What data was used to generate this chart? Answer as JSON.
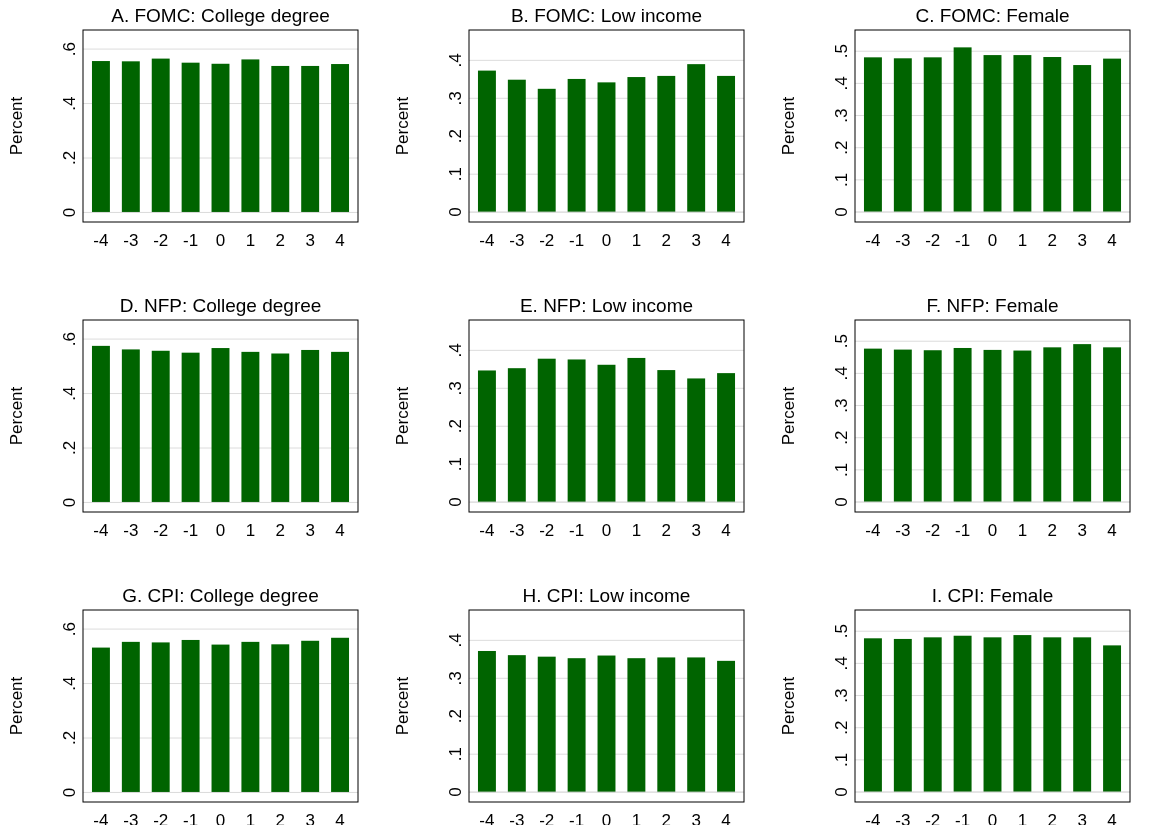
{
  "chart_data": [
    {
      "type": "bar",
      "title": "A. FOMC: College degree",
      "ylabel": "Percent",
      "categories": [
        "-4",
        "-3",
        "-2",
        "-1",
        "0",
        "1",
        "2",
        "3",
        "4"
      ],
      "values": [
        0.556,
        0.555,
        0.565,
        0.55,
        0.546,
        0.562,
        0.538,
        0.538,
        0.545
      ],
      "color": "#006400",
      "ylim": [
        -0.035,
        0.67
      ],
      "yticks": [
        {
          "value": 0,
          "label": "0"
        },
        {
          "value": 0.2,
          "label": ".2"
        },
        {
          "value": 0.4,
          "label": ".4"
        },
        {
          "value": 0.6,
          "label": ".6"
        }
      ],
      "grid": "y"
    },
    {
      "type": "bar",
      "title": "B. FOMC: Low income",
      "ylabel": "Percent",
      "categories": [
        "-4",
        "-3",
        "-2",
        "-1",
        "0",
        "1",
        "2",
        "3",
        "4"
      ],
      "values": [
        0.373,
        0.349,
        0.325,
        0.351,
        0.342,
        0.356,
        0.359,
        0.39,
        0.359
      ],
      "color": "#006400",
      "ylim": [
        -0.026,
        0.48
      ],
      "yticks": [
        {
          "value": 0,
          "label": "0"
        },
        {
          "value": 0.1,
          "label": ".1"
        },
        {
          "value": 0.2,
          "label": ".2"
        },
        {
          "value": 0.3,
          "label": ".3"
        },
        {
          "value": 0.4,
          "label": ".4"
        }
      ],
      "grid": "y"
    },
    {
      "type": "bar",
      "title": "C. FOMC: Female",
      "ylabel": "Percent",
      "categories": [
        "-4",
        "-3",
        "-2",
        "-1",
        "0",
        "1",
        "2",
        "3",
        "4"
      ],
      "values": [
        0.481,
        0.478,
        0.481,
        0.512,
        0.488,
        0.488,
        0.482,
        0.457,
        0.477
      ],
      "color": "#006400",
      "ylim": [
        -0.031,
        0.566
      ],
      "yticks": [
        {
          "value": 0,
          "label": "0"
        },
        {
          "value": 0.1,
          "label": ".1"
        },
        {
          "value": 0.2,
          "label": ".2"
        },
        {
          "value": 0.3,
          "label": ".3"
        },
        {
          "value": 0.4,
          "label": ".4"
        },
        {
          "value": 0.5,
          "label": ".5"
        }
      ],
      "grid": "y"
    },
    {
      "type": "bar",
      "title": "D. NFP: College degree",
      "ylabel": "Percent",
      "categories": [
        "-4",
        "-3",
        "-2",
        "-1",
        "0",
        "1",
        "2",
        "3",
        "4"
      ],
      "values": [
        0.575,
        0.562,
        0.557,
        0.55,
        0.567,
        0.553,
        0.547,
        0.56,
        0.553
      ],
      "color": "#006400",
      "ylim": [
        -0.035,
        0.67
      ],
      "yticks": [
        {
          "value": 0,
          "label": "0"
        },
        {
          "value": 0.2,
          "label": ".2"
        },
        {
          "value": 0.4,
          "label": ".4"
        },
        {
          "value": 0.6,
          "label": ".6"
        }
      ],
      "grid": "y"
    },
    {
      "type": "bar",
      "title": "E. NFP: Low income",
      "ylabel": "Percent",
      "categories": [
        "-4",
        "-3",
        "-2",
        "-1",
        "0",
        "1",
        "2",
        "3",
        "4"
      ],
      "values": [
        0.347,
        0.353,
        0.378,
        0.376,
        0.362,
        0.38,
        0.348,
        0.326,
        0.34
      ],
      "color": "#006400",
      "ylim": [
        -0.026,
        0.48
      ],
      "yticks": [
        {
          "value": 0,
          "label": "0"
        },
        {
          "value": 0.1,
          "label": ".1"
        },
        {
          "value": 0.2,
          "label": ".2"
        },
        {
          "value": 0.3,
          "label": ".3"
        },
        {
          "value": 0.4,
          "label": ".4"
        }
      ],
      "grid": "y"
    },
    {
      "type": "bar",
      "title": "F. NFP: Female",
      "ylabel": "Percent",
      "categories": [
        "-4",
        "-3",
        "-2",
        "-1",
        "0",
        "1",
        "2",
        "3",
        "4"
      ],
      "values": [
        0.477,
        0.474,
        0.472,
        0.479,
        0.473,
        0.471,
        0.481,
        0.491,
        0.481
      ],
      "color": "#006400",
      "ylim": [
        -0.031,
        0.566
      ],
      "yticks": [
        {
          "value": 0,
          "label": "0"
        },
        {
          "value": 0.1,
          "label": ".1"
        },
        {
          "value": 0.2,
          "label": ".2"
        },
        {
          "value": 0.3,
          "label": ".3"
        },
        {
          "value": 0.4,
          "label": ".4"
        },
        {
          "value": 0.5,
          "label": ".5"
        }
      ],
      "grid": "y"
    },
    {
      "type": "bar",
      "title": "G. CPI: College degree",
      "ylabel": "Percent",
      "categories": [
        "-4",
        "-3",
        "-2",
        "-1",
        "0",
        "1",
        "2",
        "3",
        "4"
      ],
      "values": [
        0.532,
        0.553,
        0.551,
        0.56,
        0.543,
        0.553,
        0.544,
        0.557,
        0.568
      ],
      "color": "#006400",
      "ylim": [
        -0.035,
        0.67
      ],
      "yticks": [
        {
          "value": 0,
          "label": "0"
        },
        {
          "value": 0.2,
          "label": ".2"
        },
        {
          "value": 0.4,
          "label": ".4"
        },
        {
          "value": 0.6,
          "label": ".6"
        }
      ],
      "grid": "y"
    },
    {
      "type": "bar",
      "title": "H. CPI: Low income",
      "ylabel": "Percent",
      "categories": [
        "-4",
        "-3",
        "-2",
        "-1",
        "0",
        "1",
        "2",
        "3",
        "4"
      ],
      "values": [
        0.372,
        0.361,
        0.357,
        0.353,
        0.36,
        0.353,
        0.355,
        0.355,
        0.346
      ],
      "color": "#006400",
      "ylim": [
        -0.026,
        0.48
      ],
      "yticks": [
        {
          "value": 0,
          "label": "0"
        },
        {
          "value": 0.1,
          "label": ".1"
        },
        {
          "value": 0.2,
          "label": ".2"
        },
        {
          "value": 0.3,
          "label": ".3"
        },
        {
          "value": 0.4,
          "label": ".4"
        }
      ],
      "grid": "y"
    },
    {
      "type": "bar",
      "title": "I. CPI: Female",
      "ylabel": "Percent",
      "categories": [
        "-4",
        "-3",
        "-2",
        "-1",
        "0",
        "1",
        "2",
        "3",
        "4"
      ],
      "values": [
        0.478,
        0.476,
        0.481,
        0.486,
        0.481,
        0.488,
        0.481,
        0.481,
        0.456
      ],
      "color": "#006400",
      "ylim": [
        -0.031,
        0.566
      ],
      "yticks": [
        {
          "value": 0,
          "label": "0"
        },
        {
          "value": 0.1,
          "label": ".1"
        },
        {
          "value": 0.2,
          "label": ".2"
        },
        {
          "value": 0.3,
          "label": ".3"
        },
        {
          "value": 0.4,
          "label": ".4"
        },
        {
          "value": 0.5,
          "label": ".5"
        }
      ],
      "grid": "y"
    }
  ]
}
